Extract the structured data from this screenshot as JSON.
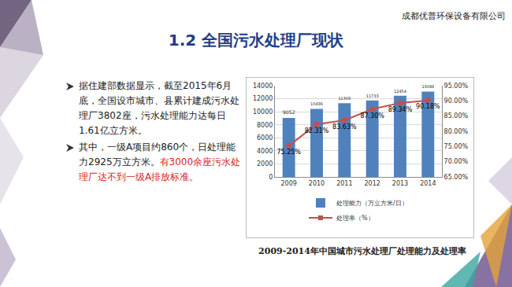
{
  "header": {
    "company": "成都优普环保设备有限公司",
    "title": "1.2 全国污水处理厂现状"
  },
  "bullets": [
    [
      {
        "text": "据住建部数据显示，截至2015年6月底，全国设市城市、县累计建成污水处理厂3802座，污水处理能力达每日1.61亿立方米。",
        "color": "#222222"
      }
    ],
    [
      {
        "text": "其中，一级A项目约860个，日处理能力2925万立方米。",
        "color": "#222222"
      },
      {
        "text": "有3000余座污水处理厂达不到一级A排放标准。",
        "color": "#d9251c"
      }
    ]
  ],
  "caption": "2009-2014年中国城市污水处理厂处理能力及处理率",
  "chart_data": {
    "type": "bar",
    "categories": [
      "2009",
      "2010",
      "2011",
      "2012",
      "2013",
      "2014"
    ],
    "series": [
      {
        "name": "处理能力（万立方米/日）",
        "type": "bar",
        "color": "#4f81bd",
        "values": [
          9052,
          10436,
          11303,
          11733,
          12454,
          13088
        ],
        "data_labels": true
      },
      {
        "name": "处理率（%）",
        "type": "line",
        "axis": "y2",
        "color": "#c0504d",
        "marker": "square",
        "values": [
          75.25,
          82.31,
          83.63,
          87.3,
          89.34,
          90.18
        ],
        "value_labels": [
          "75.25%",
          "82.31%",
          "83.63%",
          "87.30%",
          "89.34%",
          "90.18%"
        ],
        "data_labels": true
      }
    ],
    "ylim": [
      0,
      14000
    ],
    "yticks": [
      0,
      2000,
      4000,
      6000,
      8000,
      10000,
      12000,
      14000
    ],
    "y2lim": [
      65,
      95
    ],
    "y2ticks": [
      {
        "value": 65,
        "label": "65.00%"
      },
      {
        "value": 70,
        "label": "70.00%"
      },
      {
        "value": 75,
        "label": "75.00%"
      },
      {
        "value": 80,
        "label": "80.00%"
      },
      {
        "value": 85,
        "label": "85.00%"
      },
      {
        "value": 90,
        "label": "90.00%"
      },
      {
        "value": 95,
        "label": "95.00%"
      }
    ],
    "grid": true,
    "legend": "bottom"
  }
}
